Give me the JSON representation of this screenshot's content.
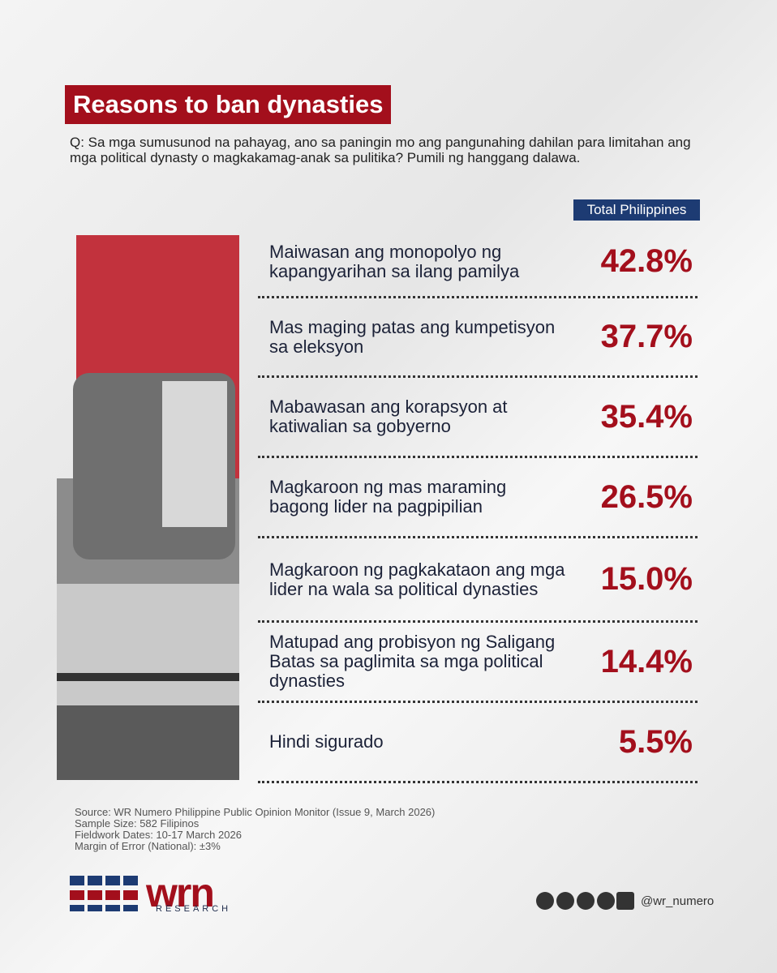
{
  "header": {
    "title": "Reasons to ban dynasties",
    "question": "Q: Sa mga sumusunod na pahayag, ano sa paningin mo ang pangunahing dahilan para limitahan ang mga political dynasty o magkakamag-anak sa pulitika? Pumili ng hanggang dalawa."
  },
  "table": {
    "column_header": "Total Philippines",
    "rows": [
      [
        "Maiwasan ang monopolyo ng kapangyarihan sa ilang pamilya",
        "42.8%"
      ],
      [
        "Mas maging patas ang kumpetisyon sa eleksyon",
        "37.7%"
      ],
      [
        "Mabawasan ang korapsyon at katiwalian sa gobyerno",
        "35.4%"
      ],
      [
        "Magkaroon ng mas maraming bagong lider na pagpipilian",
        "26.5%"
      ],
      [
        "Magkaroon ng pagkakataon ang mga lider na wala sa political dynasties",
        "15.0%"
      ],
      [
        "Matupad ang probisyon ng Saligang Batas sa paglimita sa mga political dynasties",
        "14.4%"
      ],
      [
        "Hindi sigurado",
        "5.5%"
      ]
    ]
  },
  "footer": {
    "source": [
      "Source: WR Numero Philippine Public Opinion Monitor (Issue 9, March 2026)",
      "Sample Size: 582 Filipinos",
      "Fieldwork Dates: 10-17 March 2026",
      "Margin of Error (National): ±3%"
    ],
    "logo": "wrn",
    "logo_sub": "RESEARCH",
    "handle": "@wr_numero"
  }
}
